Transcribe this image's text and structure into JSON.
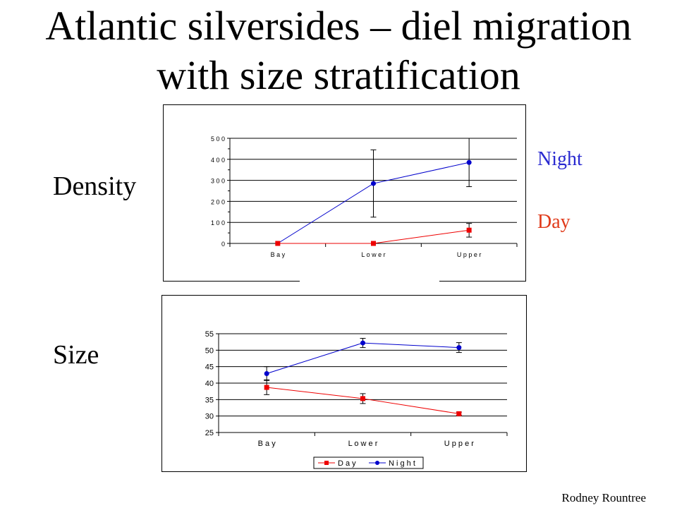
{
  "slide": {
    "title_line1": "Atlantic silversides – diel migration",
    "title_line2": "with size stratification",
    "label_density": "Density",
    "label_size": "Size",
    "legend_night": "Night",
    "legend_day": "Day",
    "credit": "Rodney Rountree",
    "night_color": "#2a2ad0",
    "day_color": "#e03a1a"
  },
  "chart_data": [
    {
      "type": "line",
      "categories": [
        "Bay",
        "Lower",
        "Upper"
      ],
      "ylim": [
        0,
        500
      ],
      "yticks": [
        0,
        100,
        200,
        300,
        400,
        500
      ],
      "tick_labels": [
        "0",
        "1 0 0",
        "2 0 0",
        "3 0 0",
        "4 0 0",
        "5 0 0"
      ],
      "category_labels": [
        "B a y",
        "L o w e r",
        "U p p e r"
      ],
      "grid": true,
      "series": [
        {
          "name": "Night",
          "color": "#0000cc",
          "marker": "circle",
          "values": [
            0,
            285,
            385
          ],
          "err_low": [
            0,
            125,
            270
          ],
          "err_high": [
            0,
            445,
            500
          ]
        },
        {
          "name": "Day",
          "color": "#ee0000",
          "marker": "square",
          "values": [
            0,
            0,
            63
          ],
          "err_low": [
            0,
            0,
            30
          ],
          "err_high": [
            0,
            0,
            95
          ]
        }
      ]
    },
    {
      "type": "line",
      "categories": [
        "Bay",
        "Lower",
        "Upper"
      ],
      "ylim": [
        25,
        55
      ],
      "yticks": [
        25,
        30,
        35,
        40,
        45,
        50,
        55
      ],
      "tick_labels": [
        "25",
        "30",
        "35",
        "40",
        "45",
        "50",
        "55"
      ],
      "category_labels": [
        "B a y",
        "L o w e r",
        "U p p e r"
      ],
      "grid": true,
      "legend": "bottom",
      "legend_labels": [
        "D a y",
        "N i g h t"
      ],
      "series": [
        {
          "name": "Day",
          "color": "#ee0000",
          "marker": "square",
          "values": [
            38.7,
            35.3,
            30.7
          ],
          "err_low": [
            36.5,
            33.8,
            30.2
          ],
          "err_high": [
            41.0,
            36.8,
            31.2
          ]
        },
        {
          "name": "Night",
          "color": "#0000cc",
          "marker": "circle",
          "values": [
            42.9,
            52.2,
            50.8
          ],
          "err_low": [
            40.8,
            50.8,
            49.3
          ],
          "err_high": [
            45.0,
            53.6,
            52.3
          ]
        }
      ]
    }
  ]
}
